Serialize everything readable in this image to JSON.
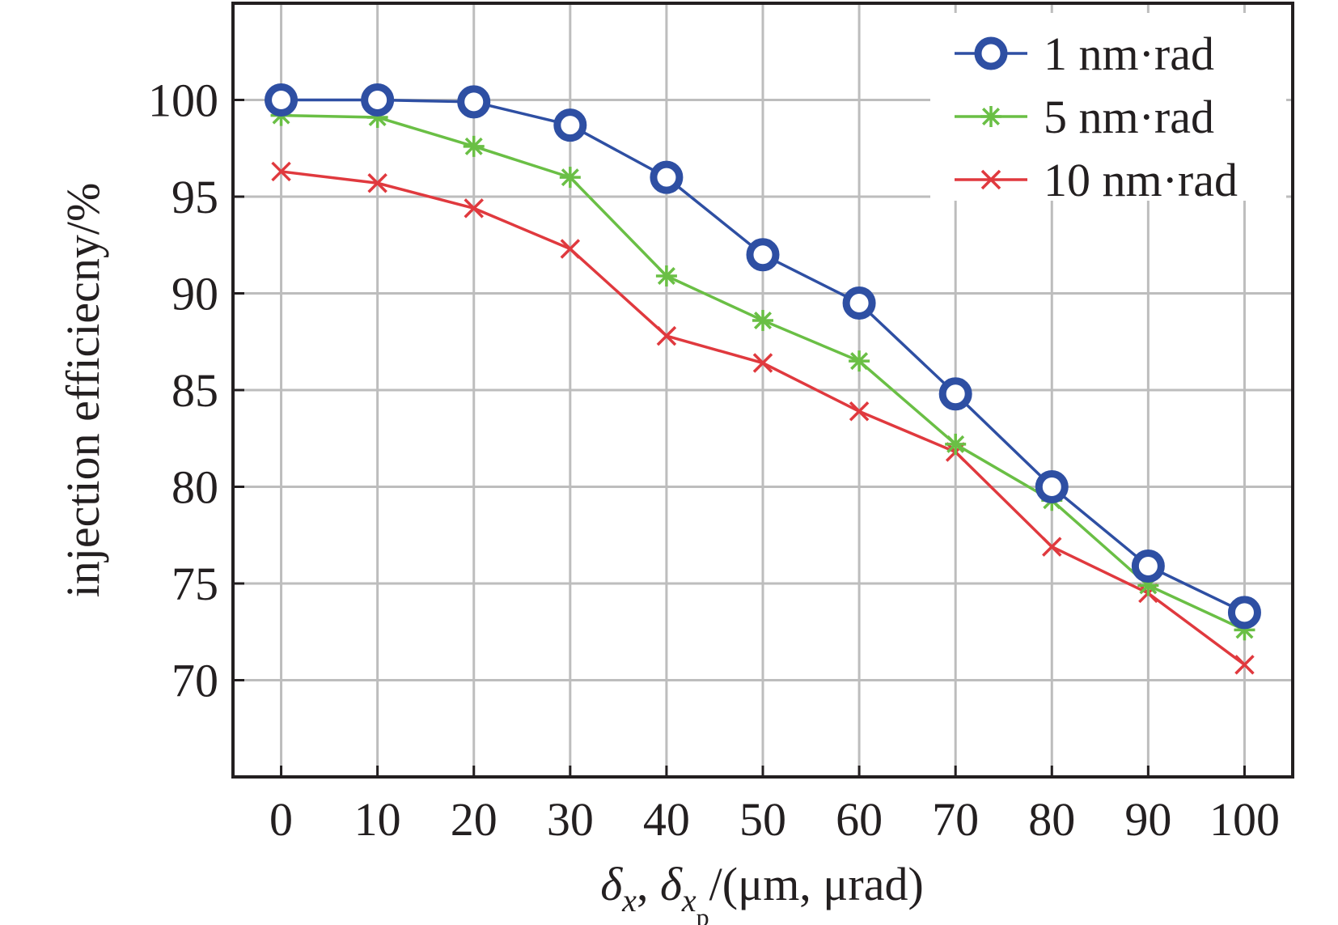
{
  "chart_data": {
    "type": "line",
    "x": [
      0,
      10,
      20,
      30,
      40,
      50,
      60,
      70,
      80,
      90,
      100
    ],
    "x_ticks": [
      "0",
      "10",
      "20",
      "30",
      "40",
      "50",
      "60",
      "70",
      "80",
      "90",
      "100"
    ],
    "y_ticks": [
      "70",
      "75",
      "80",
      "85",
      "90",
      "95",
      "100"
    ],
    "xlim": [
      -5,
      105
    ],
    "ylim": [
      65,
      105
    ],
    "grid": true,
    "legend_position": "top-right",
    "ylabel": "injection efficiecny/%",
    "xlabel": {
      "delta": "δ",
      "sub_x": "x",
      "comma": ", ",
      "sub_p": "p",
      "units": "/(μm, μrad)"
    },
    "series": [
      {
        "name": "1 nm·rad",
        "color": "#2e4fa3",
        "marker": "circle",
        "values": [
          100.0,
          100.0,
          99.9,
          98.7,
          96.0,
          92.0,
          89.5,
          84.8,
          80.0,
          75.9,
          73.5
        ]
      },
      {
        "name": "5 nm·rad",
        "color": "#6abf45",
        "marker": "asterisk",
        "values": [
          99.2,
          99.1,
          97.6,
          96.0,
          90.9,
          88.6,
          86.5,
          82.2,
          79.3,
          74.9,
          72.6
        ]
      },
      {
        "name": "10 nm·rad",
        "color": "#e0393e",
        "marker": "x",
        "values": [
          96.3,
          95.7,
          94.4,
          92.3,
          87.8,
          86.4,
          83.9,
          81.8,
          76.9,
          74.5,
          70.8
        ]
      }
    ]
  }
}
